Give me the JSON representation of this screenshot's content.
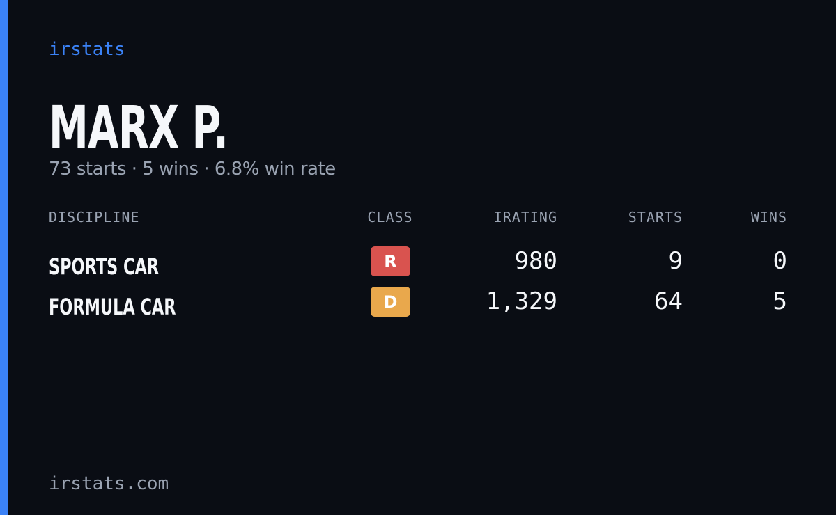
{
  "brand": "irstats",
  "header": {
    "title": "MARX P.",
    "subtitle": "73 starts · 5 wins · 6.8% win rate"
  },
  "table": {
    "headers": [
      "DISCIPLINE",
      "CLASS",
      "IRATING",
      "STARTS",
      "WINS"
    ],
    "rows": [
      {
        "discipline": "SPORTS CAR",
        "class": "R",
        "class_color": "#d9534f",
        "irating": "980",
        "starts": "9",
        "wins": "0"
      },
      {
        "discipline": "FORMULA CAR",
        "class": "D",
        "class_color": "#e9a84c",
        "irating": "1,329",
        "starts": "64",
        "wins": "5"
      }
    ]
  },
  "footer": "irstats.com"
}
